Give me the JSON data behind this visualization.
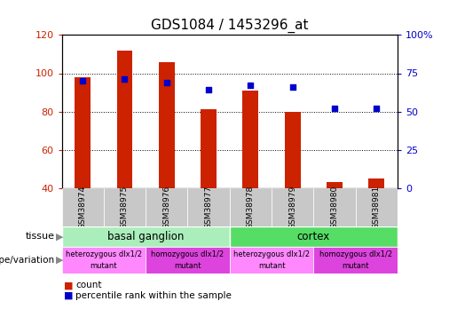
{
  "title": "GDS1084 / 1453296_at",
  "samples": [
    "GSM38974",
    "GSM38975",
    "GSM38976",
    "GSM38977",
    "GSM38978",
    "GSM38979",
    "GSM38980",
    "GSM38981"
  ],
  "bar_values": [
    98,
    112,
    106,
    81,
    91,
    80,
    43,
    45
  ],
  "percentile_values": [
    70,
    71,
    69,
    64,
    67,
    66,
    52,
    52
  ],
  "bar_bottom": 40,
  "ylim_left": [
    40,
    120
  ],
  "ylim_right": [
    0,
    100
  ],
  "yticks_left": [
    40,
    60,
    80,
    100,
    120
  ],
  "yticks_right": [
    0,
    25,
    50,
    75,
    100
  ],
  "bar_color": "#cc2200",
  "percentile_color": "#0000cc",
  "tissue_groups": [
    {
      "label": "basal ganglion",
      "start": 0,
      "end": 4,
      "color": "#aaeebb"
    },
    {
      "label": "cortex",
      "start": 4,
      "end": 8,
      "color": "#55dd66"
    }
  ],
  "genotype_groups": [
    {
      "label": "heterozygous dlx1/2\nmutant",
      "start": 0,
      "end": 2,
      "color": "#ff88ff"
    },
    {
      "label": "homozygous dlx1/2\nmutant",
      "start": 2,
      "end": 4,
      "color": "#dd44dd"
    },
    {
      "label": "heterozygous dlx1/2\nmutant",
      "start": 4,
      "end": 6,
      "color": "#ff88ff"
    },
    {
      "label": "homozygous dlx1/2\nmutant",
      "start": 6,
      "end": 8,
      "color": "#dd44dd"
    }
  ],
  "tissue_label": "tissue",
  "genotype_label": "genotype/variation",
  "legend_count": "count",
  "legend_percentile": "percentile rank within the sample",
  "tick_label_color_left": "#cc2200",
  "tick_label_color_right": "#0000cc",
  "sample_bg_color": "#c8c8c8"
}
